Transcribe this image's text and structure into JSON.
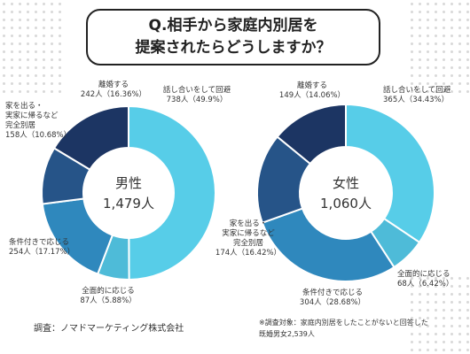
{
  "title": {
    "line1": "Q.相手から家庭内別居を",
    "line2": "提案されたらどうしますか？"
  },
  "colors": {
    "divorce": "#1c3563",
    "leave_home": "#265488",
    "conditional": "#2f88bd",
    "accept": "#4ebbd8",
    "talk": "#57cde8"
  },
  "chart_data": [
    {
      "type": "pie",
      "center_title": "男性",
      "center_value": "1,479人",
      "slices": [
        {
          "key": "talk",
          "label_lines": [
            "話し合いをして回避",
            "738人（49.9%）"
          ],
          "value": 49.9
        },
        {
          "key": "accept",
          "label_lines": [
            "全面的に応じる",
            "87人（5.88%）"
          ],
          "value": 5.88
        },
        {
          "key": "conditional",
          "label_lines": [
            "条件付きで応じる",
            "254人（17.17%）"
          ],
          "value": 17.17
        },
        {
          "key": "leave_home",
          "label_lines": [
            "家を出る・",
            "実家に帰るなど",
            "完全別居",
            "158人（10.68%）"
          ],
          "value": 10.68
        },
        {
          "key": "divorce",
          "label_lines": [
            "離婚する",
            "242人（16.36%）"
          ],
          "value": 16.36
        }
      ]
    },
    {
      "type": "pie",
      "center_title": "女性",
      "center_value": "1,060人",
      "slices": [
        {
          "key": "talk",
          "label_lines": [
            "話し合いをして回避",
            "365人（34.43%）"
          ],
          "value": 34.43
        },
        {
          "key": "accept",
          "label_lines": [
            "全面的に応じる",
            "68人（6.42%）"
          ],
          "value": 6.42
        },
        {
          "key": "conditional",
          "label_lines": [
            "条件付きで応じる",
            "304人（28.68%）"
          ],
          "value": 28.68
        },
        {
          "key": "leave_home",
          "label_lines": [
            "家を出る・",
            "実家に帰るなど",
            "完全別居",
            "174人（16.42%）"
          ],
          "value": 16.42
        },
        {
          "key": "divorce",
          "label_lines": [
            "離婚する",
            "149人（14.06%）"
          ],
          "value": 14.06
        }
      ]
    }
  ],
  "footer": {
    "source": "調査：ノマドマーケティング株式会社",
    "note_line1": "※調査対象：家庭内別居をしたことがないと回答した",
    "note_line2": "既婚男女2,539人"
  }
}
